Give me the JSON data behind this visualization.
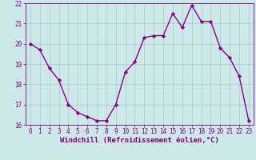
{
  "x": [
    0,
    1,
    2,
    3,
    4,
    5,
    6,
    7,
    8,
    9,
    10,
    11,
    12,
    13,
    14,
    15,
    16,
    17,
    18,
    19,
    20,
    21,
    22,
    23
  ],
  "y": [
    20.0,
    19.7,
    18.8,
    18.2,
    17.0,
    16.6,
    16.4,
    16.2,
    16.2,
    17.0,
    18.6,
    19.1,
    20.3,
    20.4,
    20.4,
    21.5,
    20.8,
    21.9,
    21.1,
    21.1,
    19.8,
    19.3,
    18.4,
    16.2
  ],
  "line_color": "#8b008b",
  "marker": "D",
  "marker_size": 2.2,
  "bg_color": "#cde8e8",
  "grid_color": "#aacece",
  "xlabel": "Windchill (Refroidissement éolien,°C)",
  "xlim": [
    -0.5,
    23.5
  ],
  "ylim": [
    16,
    22
  ],
  "yticks": [
    16,
    17,
    18,
    19,
    20,
    21,
    22
  ],
  "xticks": [
    0,
    1,
    2,
    3,
    4,
    5,
    6,
    7,
    8,
    9,
    10,
    11,
    12,
    13,
    14,
    15,
    16,
    17,
    18,
    19,
    20,
    21,
    22,
    23
  ],
  "tick_color": "#7b007b",
  "tick_fontsize": 5.5,
  "xlabel_fontsize": 6.5,
  "line_width": 1.0
}
